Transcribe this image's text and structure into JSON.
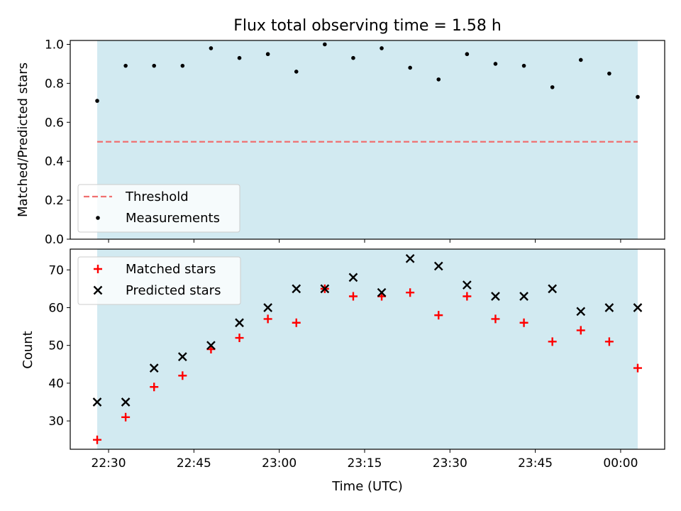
{
  "chart_data": [
    {
      "type": "scatter",
      "title": "Flux total observing time = 1.58 h",
      "ylabel": "Matched/Predicted stars",
      "xlabel": "",
      "ylim": [
        0,
        1.02
      ],
      "yticks": [
        0.0,
        0.2,
        0.4,
        0.6,
        0.8,
        1.0
      ],
      "ytick_labels": [
        "0.0",
        "0.2",
        "0.4",
        "0.6",
        "0.8",
        "1.0"
      ],
      "grid": false,
      "shaded_region": {
        "x_start": "22:28",
        "x_end": "00:03",
        "color": "#add8e6"
      },
      "threshold": {
        "name": "Threshold",
        "value": 0.5,
        "style": "dashed",
        "color": "#f07070"
      },
      "series": [
        {
          "name": "Measurements",
          "color": "#000000",
          "marker": "dot",
          "x": [
            "22:28",
            "22:33",
            "22:38",
            "22:43",
            "22:48",
            "22:53",
            "22:58",
            "23:03",
            "23:08",
            "23:13",
            "23:18",
            "23:23",
            "23:28",
            "23:33",
            "23:38",
            "23:43",
            "23:48",
            "23:53",
            "23:58",
            "00:03"
          ],
          "y": [
            0.71,
            0.89,
            0.89,
            0.89,
            0.98,
            0.93,
            0.95,
            0.86,
            1.0,
            0.93,
            0.98,
            0.88,
            0.82,
            0.95,
            0.9,
            0.89,
            0.78,
            0.92,
            0.85,
            0.73
          ]
        }
      ],
      "legend": {
        "position": "lower-left",
        "entries": [
          "Threshold",
          "Measurements"
        ]
      }
    },
    {
      "type": "scatter",
      "title": "",
      "ylabel": "Count",
      "xlabel": "Time (UTC)",
      "ylim": [
        22.5,
        75.5
      ],
      "yticks": [
        30,
        40,
        50,
        60,
        70
      ],
      "ytick_labels": [
        "30",
        "40",
        "50",
        "60",
        "70"
      ],
      "xticks": [
        "22:30",
        "22:45",
        "23:00",
        "23:15",
        "23:30",
        "23:45",
        "00:00"
      ],
      "grid": false,
      "shaded_region": {
        "x_start": "22:28",
        "x_end": "00:03",
        "color": "#add8e6"
      },
      "series": [
        {
          "name": "Matched stars",
          "color": "#ff0000",
          "marker": "plus",
          "x": [
            "22:28",
            "22:33",
            "22:38",
            "22:43",
            "22:48",
            "22:53",
            "22:58",
            "23:03",
            "23:08",
            "23:13",
            "23:18",
            "23:23",
            "23:28",
            "23:33",
            "23:38",
            "23:43",
            "23:48",
            "23:53",
            "23:58",
            "00:03"
          ],
          "y": [
            25,
            31,
            39,
            42,
            49,
            52,
            57,
            56,
            65,
            63,
            63,
            64,
            58,
            63,
            57,
            56,
            51,
            54,
            51,
            44
          ]
        },
        {
          "name": "Predicted stars",
          "color": "#000000",
          "marker": "x",
          "x": [
            "22:28",
            "22:33",
            "22:38",
            "22:43",
            "22:48",
            "22:53",
            "22:58",
            "23:03",
            "23:08",
            "23:13",
            "23:18",
            "23:23",
            "23:28",
            "23:33",
            "23:38",
            "23:43",
            "23:48",
            "23:53",
            "23:58",
            "00:03"
          ],
          "y": [
            35,
            35,
            44,
            47,
            50,
            56,
            60,
            65,
            65,
            68,
            64,
            73,
            71,
            66,
            63,
            63,
            65,
            59,
            60,
            60
          ]
        }
      ],
      "legend": {
        "position": "upper-left",
        "entries": [
          "Matched stars",
          "Predicted stars"
        ]
      }
    }
  ]
}
